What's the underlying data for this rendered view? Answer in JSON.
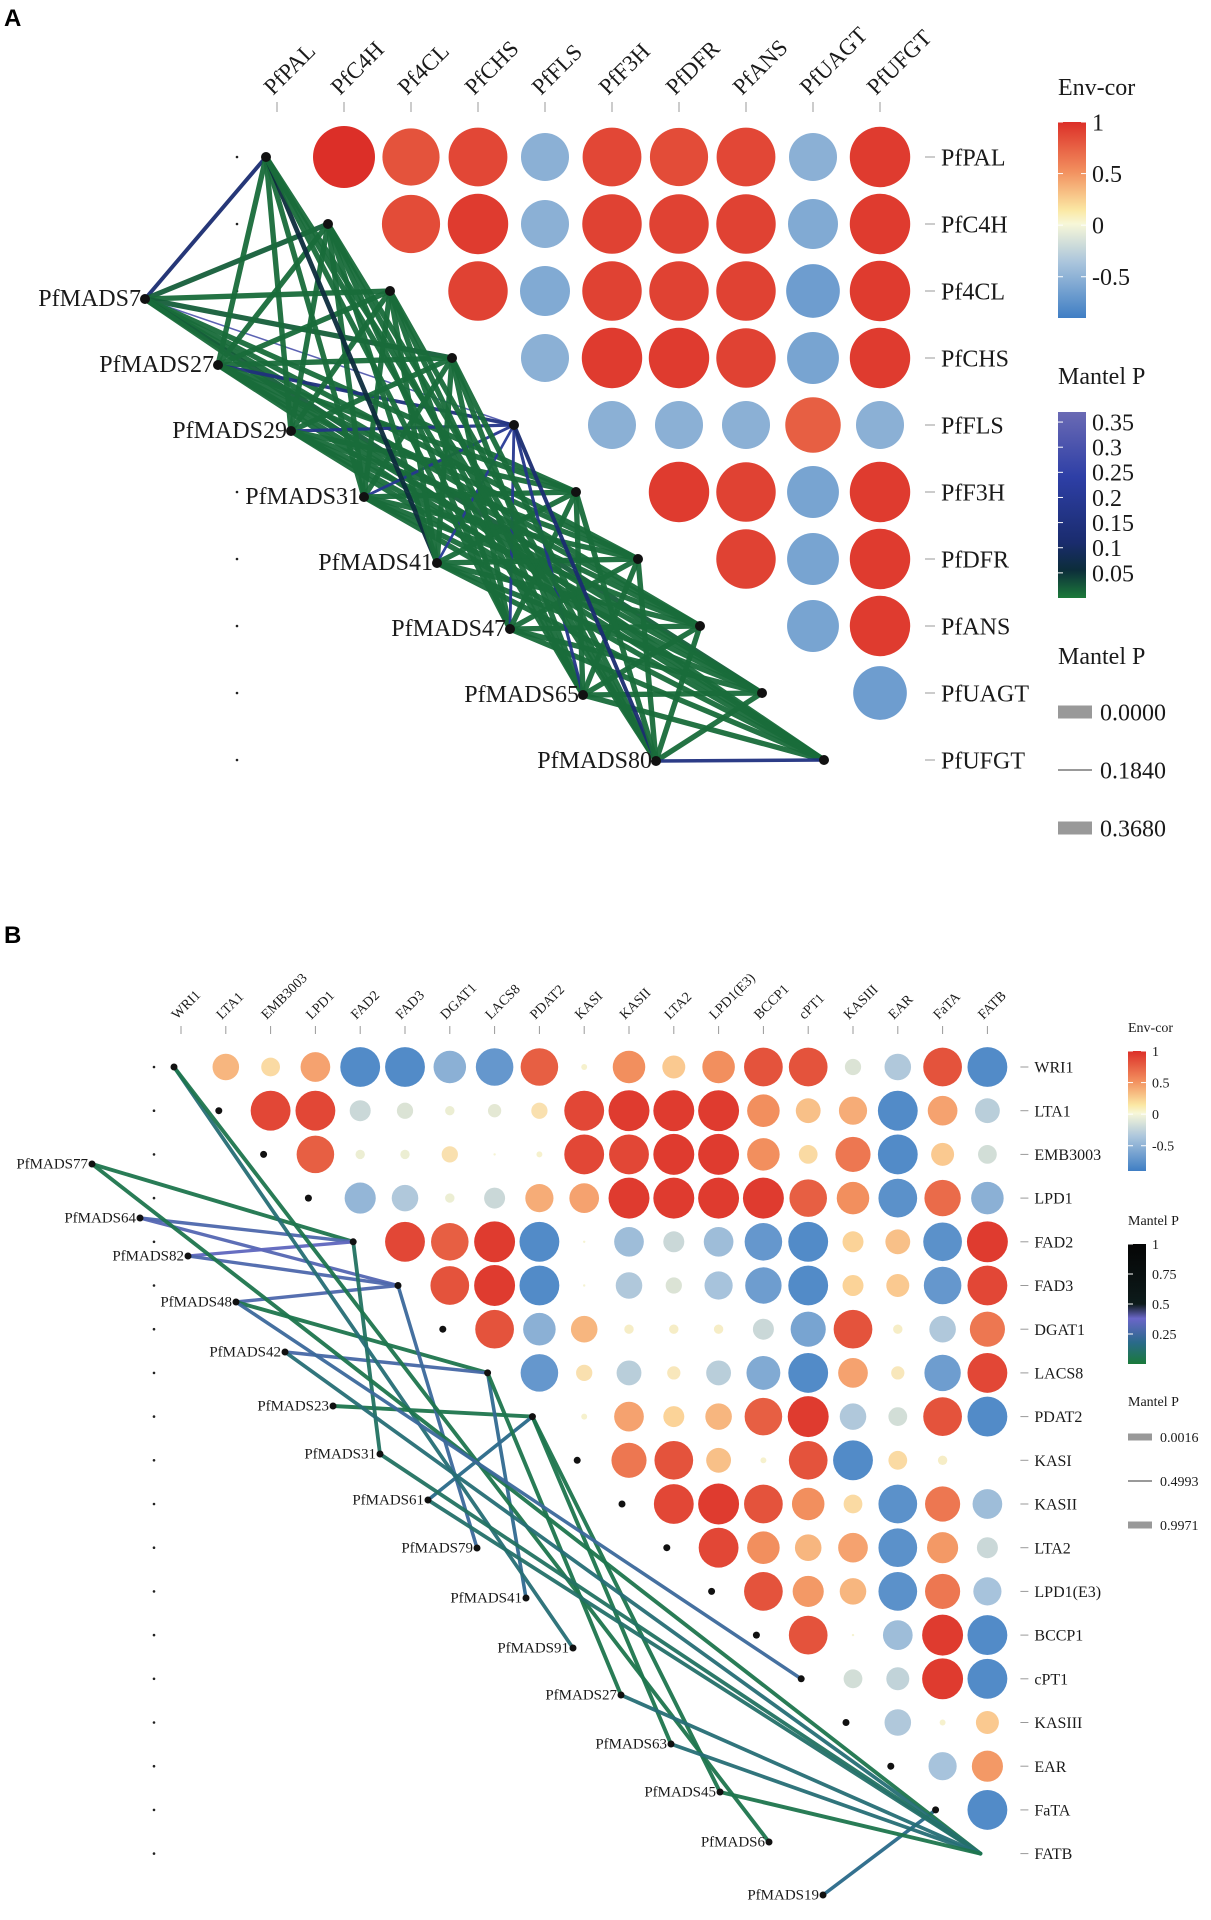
{
  "chart_data": [
    {
      "type": "heatmap",
      "panel": "A",
      "variables": [
        "PfPAL",
        "PfC4H",
        "Pf4CL",
        "PfCHS",
        "PfFLS",
        "PfF3H",
        "PfDFR",
        "PfANS",
        "PfUAGT",
        "PfUFGT"
      ],
      "correlation_upper": [
        [
          1,
          0.85,
          0.9,
          -0.6,
          0.9,
          0.88,
          0.9,
          -0.6,
          0.95
        ],
        [
          0.88,
          0.95,
          -0.6,
          0.92,
          0.92,
          0.92,
          -0.65,
          0.95
        ],
        [
          0.92,
          -0.65,
          0.92,
          0.92,
          0.92,
          -0.75,
          0.95
        ],
        [
          -0.6,
          0.95,
          0.95,
          0.92,
          -0.7,
          0.95
        ],
        [
          -0.6,
          -0.6,
          -0.6,
          0.8,
          -0.6
        ],
        [
          0.95,
          0.92,
          -0.7,
          0.95
        ],
        [
          0.92,
          -0.7,
          0.95
        ],
        [
          -0.7,
          0.95
        ],
        [
          -0.75
        ]
      ],
      "regulators": [
        "PfMADS7",
        "PfMADS27",
        "PfMADS29",
        "PfMADS31",
        "PfMADS41",
        "PfMADS47",
        "PfMADS65",
        "PfMADS80"
      ],
      "mantel_links": [
        {
          "from": "PfMADS7",
          "to": "PfPAL",
          "p": 0.12
        },
        {
          "from": "PfMADS7",
          "to": "PfC4H",
          "p": 0.02
        },
        {
          "from": "PfMADS7",
          "to": "Pf4CL",
          "p": 0.01
        },
        {
          "from": "PfMADS7",
          "to": "PfCHS",
          "p": 0.02
        },
        {
          "from": "PfMADS7",
          "to": "PfFLS",
          "p": 0.33
        },
        {
          "from": "PfMADS7",
          "to": "PfF3H",
          "p": 0.01
        },
        {
          "from": "PfMADS7",
          "to": "PfDFR",
          "p": 0.01
        },
        {
          "from": "PfMADS7",
          "to": "PfANS",
          "p": 0.01
        },
        {
          "from": "PfMADS7",
          "to": "PfUAGT",
          "p": 0.02
        },
        {
          "from": "PfMADS7",
          "to": "PfUFGT",
          "p": 0.01
        },
        {
          "from": "PfMADS27",
          "to": "PfPAL",
          "p": 0.01
        },
        {
          "from": "PfMADS27",
          "to": "PfC4H",
          "p": 0.01
        },
        {
          "from": "PfMADS27",
          "to": "Pf4CL",
          "p": 0.01
        },
        {
          "from": "PfMADS27",
          "to": "PfCHS",
          "p": 0.01
        },
        {
          "from": "PfMADS27",
          "to": "PfFLS",
          "p": 0.15
        },
        {
          "from": "PfMADS27",
          "to": "PfF3H",
          "p": 0.01
        },
        {
          "from": "PfMADS27",
          "to": "PfDFR",
          "p": 0.01
        },
        {
          "from": "PfMADS27",
          "to": "PfANS",
          "p": 0.01
        },
        {
          "from": "PfMADS27",
          "to": "PfUAGT",
          "p": 0.01
        },
        {
          "from": "PfMADS27",
          "to": "PfUFGT",
          "p": 0.01
        },
        {
          "from": "PfMADS29",
          "to": "PfPAL",
          "p": 0.01
        },
        {
          "from": "PfMADS29",
          "to": "PfC4H",
          "p": 0.01
        },
        {
          "from": "PfMADS29",
          "to": "Pf4CL",
          "p": 0.01
        },
        {
          "from": "PfMADS29",
          "to": "PfCHS",
          "p": 0.01
        },
        {
          "from": "PfMADS29",
          "to": "PfFLS",
          "p": 0.18
        },
        {
          "from": "PfMADS29",
          "to": "PfF3H",
          "p": 0.01
        },
        {
          "from": "PfMADS29",
          "to": "PfDFR",
          "p": 0.01
        },
        {
          "from": "PfMADS29",
          "to": "PfANS",
          "p": 0.01
        },
        {
          "from": "PfMADS29",
          "to": "PfUAGT",
          "p": 0.01
        },
        {
          "from": "PfMADS29",
          "to": "PfUFGT",
          "p": 0.01
        },
        {
          "from": "PfMADS31",
          "to": "PfPAL",
          "p": 0.01
        },
        {
          "from": "PfMADS31",
          "to": "PfC4H",
          "p": 0.01
        },
        {
          "from": "PfMADS31",
          "to": "Pf4CL",
          "p": 0.01
        },
        {
          "from": "PfMADS31",
          "to": "PfCHS",
          "p": 0.01
        },
        {
          "from": "PfMADS31",
          "to": "PfFLS",
          "p": 0.2
        },
        {
          "from": "PfMADS31",
          "to": "PfF3H",
          "p": 0.01
        },
        {
          "from": "PfMADS31",
          "to": "PfDFR",
          "p": 0.01
        },
        {
          "from": "PfMADS31",
          "to": "PfANS",
          "p": 0.01
        },
        {
          "from": "PfMADS31",
          "to": "PfUAGT",
          "p": 0.01
        },
        {
          "from": "PfMADS31",
          "to": "PfUFGT",
          "p": 0.01
        },
        {
          "from": "PfMADS41",
          "to": "PfPAL",
          "p": 0.06
        },
        {
          "from": "PfMADS41",
          "to": "PfC4H",
          "p": 0.01
        },
        {
          "from": "PfMADS41",
          "to": "Pf4CL",
          "p": 0.01
        },
        {
          "from": "PfMADS41",
          "to": "PfCHS",
          "p": 0.01
        },
        {
          "from": "PfMADS41",
          "to": "PfFLS",
          "p": 0.22
        },
        {
          "from": "PfMADS41",
          "to": "PfF3H",
          "p": 0.01
        },
        {
          "from": "PfMADS41",
          "to": "PfDFR",
          "p": 0.01
        },
        {
          "from": "PfMADS41",
          "to": "PfANS",
          "p": 0.01
        },
        {
          "from": "PfMADS41",
          "to": "PfUAGT",
          "p": 0.01
        },
        {
          "from": "PfMADS41",
          "to": "PfUFGT",
          "p": 0.01
        },
        {
          "from": "PfMADS47",
          "to": "PfPAL",
          "p": 0.01
        },
        {
          "from": "PfMADS47",
          "to": "PfC4H",
          "p": 0.01
        },
        {
          "from": "PfMADS47",
          "to": "Pf4CL",
          "p": 0.01
        },
        {
          "from": "PfMADS47",
          "to": "PfCHS",
          "p": 0.01
        },
        {
          "from": "PfMADS47",
          "to": "PfFLS",
          "p": 0.2
        },
        {
          "from": "PfMADS47",
          "to": "PfF3H",
          "p": 0.01
        },
        {
          "from": "PfMADS47",
          "to": "PfDFR",
          "p": 0.01
        },
        {
          "from": "PfMADS47",
          "to": "PfANS",
          "p": 0.01
        },
        {
          "from": "PfMADS47",
          "to": "PfUAGT",
          "p": 0.01
        },
        {
          "from": "PfMADS47",
          "to": "PfUFGT",
          "p": 0.01
        },
        {
          "from": "PfMADS65",
          "to": "PfPAL",
          "p": 0.01
        },
        {
          "from": "PfMADS65",
          "to": "PfC4H",
          "p": 0.01
        },
        {
          "from": "PfMADS65",
          "to": "Pf4CL",
          "p": 0.01
        },
        {
          "from": "PfMADS65",
          "to": "PfCHS",
          "p": 0.01
        },
        {
          "from": "PfMADS65",
          "to": "PfFLS",
          "p": 0.18
        },
        {
          "from": "PfMADS65",
          "to": "PfF3H",
          "p": 0.01
        },
        {
          "from": "PfMADS65",
          "to": "PfDFR",
          "p": 0.01
        },
        {
          "from": "PfMADS65",
          "to": "PfANS",
          "p": 0.01
        },
        {
          "from": "PfMADS65",
          "to": "PfUAGT",
          "p": 0.01
        },
        {
          "from": "PfMADS65",
          "to": "PfUFGT",
          "p": 0.01
        },
        {
          "from": "PfMADS80",
          "to": "PfPAL",
          "p": 0.01
        },
        {
          "from": "PfMADS80",
          "to": "PfC4H",
          "p": 0.01
        },
        {
          "from": "PfMADS80",
          "to": "Pf4CL",
          "p": 0.01
        },
        {
          "from": "PfMADS80",
          "to": "PfCHS",
          "p": 0.01
        },
        {
          "from": "PfMADS80",
          "to": "PfFLS",
          "p": 0.12
        },
        {
          "from": "PfMADS80",
          "to": "PfF3H",
          "p": 0.01
        },
        {
          "from": "PfMADS80",
          "to": "PfDFR",
          "p": 0.01
        },
        {
          "from": "PfMADS80",
          "to": "PfANS",
          "p": 0.01
        },
        {
          "from": "PfMADS80",
          "to": "PfUAGT",
          "p": 0.01
        },
        {
          "from": "PfMADS80",
          "to": "PfUFGT",
          "p": 0.16
        }
      ],
      "legend": {
        "env_title": "Env-cor",
        "env_ticks": [
          "1",
          "0.5",
          "0",
          "-0.5"
        ],
        "env_tick_values": [
          1,
          0.5,
          0,
          -0.5
        ],
        "env_range": [
          -0.9,
          1
        ],
        "pcolor_title": "Mantel P",
        "pcolor_ticks": [
          "0.35",
          "0.3",
          "0.25",
          "0.2",
          "0.15",
          "0.1",
          "0.05"
        ],
        "pcolor_tick_values": [
          0.35,
          0.3,
          0.25,
          0.2,
          0.15,
          0.1,
          0.05
        ],
        "pcolor_range": [
          0,
          0.37
        ],
        "psize_title": "Mantel P",
        "psize_labels": [
          "0.0000",
          "0.1840",
          "0.3680"
        ]
      }
    },
    {
      "type": "heatmap",
      "panel": "B",
      "variables": [
        "WRI1",
        "LTA1",
        "EMB3003",
        "LPD1",
        "FAD2",
        "FAD3",
        "DGAT1",
        "LACS8",
        "PDAT2",
        "KASI",
        "KASII",
        "LTA2",
        "LPD1(E3)",
        "BCCP1",
        "cPT1",
        "KASIII",
        "EAR",
        "FaTA",
        "FATB"
      ],
      "correlation_upper": [
        [
          0.4,
          0.2,
          0.5,
          -0.9,
          -0.9,
          -0.6,
          -0.8,
          0.8,
          0.02,
          0.6,
          0.3,
          0.6,
          0.85,
          0.85,
          -0.15,
          -0.4,
          0.85,
          -0.9
        ],
        [
          0.9,
          0.9,
          -0.25,
          -0.15,
          -0.05,
          -0.1,
          0.15,
          0.9,
          0.95,
          0.95,
          0.95,
          0.6,
          0.35,
          0.45,
          -0.9,
          0.5,
          -0.35
        ],
        [
          0.8,
          -0.05,
          -0.05,
          0.15,
          0,
          0.02,
          0.9,
          0.9,
          0.95,
          0.95,
          0.6,
          0.2,
          0.7,
          -0.9,
          0.3,
          -0.2
        ],
        [
          -0.55,
          -0.4,
          -0.05,
          -0.25,
          0.45,
          0.5,
          0.95,
          0.95,
          0.95,
          0.95,
          0.8,
          0.6,
          -0.85,
          0.75,
          -0.6
        ],
        [
          0.9,
          0.8,
          0.95,
          -0.9,
          0,
          -0.5,
          -0.25,
          -0.5,
          -0.8,
          -0.9,
          0.25,
          0.35,
          -0.85,
          0.95
        ],
        [
          0.85,
          0.95,
          -0.9,
          0,
          -0.4,
          -0.15,
          -0.45,
          -0.75,
          -0.9,
          0.25,
          0.3,
          -0.8,
          0.9
        ],
        [
          0.85,
          -0.6,
          0.4,
          0.05,
          0.05,
          0.05,
          -0.25,
          -0.7,
          0.85,
          0.05,
          -0.4,
          0.7
        ],
        [
          -0.8,
          0.15,
          -0.35,
          0.1,
          -0.35,
          -0.65,
          -0.9,
          0.5,
          0.1,
          -0.75,
          0.9
        ],
        [
          0.02,
          0.5,
          0.25,
          0.4,
          0.8,
          0.95,
          -0.4,
          -0.2,
          0.85,
          -0.9
        ],
        [
          0.7,
          0.85,
          0.35,
          0.02,
          0.85,
          -0.9,
          0.2,
          0.05
        ],
        [
          0.9,
          0.95,
          0.85,
          0.6,
          0.2,
          -0.85,
          0.7,
          -0.5
        ],
        [
          0.9,
          0.6,
          0.4,
          0.5,
          -0.85,
          0.55,
          -0.25
        ],
        [
          0.85,
          0.55,
          0.4,
          -0.85,
          0.7,
          -0.45
        ],
        [
          0.85,
          0,
          -0.5,
          0.95,
          -0.9
        ],
        [
          -0.2,
          -0.3,
          0.95,
          -0.9
        ],
        [
          -0.4,
          0.02,
          0.3
        ],
        [
          -0.45,
          0.55
        ],
        [
          -0.9
        ]
      ],
      "regulators": [
        "PfMADS77",
        "PfMADS64",
        "PfMADS82",
        "PfMADS48",
        "PfMADS42",
        "PfMADS23",
        "PfMADS31",
        "PfMADS61",
        "PfMADS79",
        "PfMADS41",
        "PfMADS91",
        "PfMADS27",
        "PfMADS63",
        "PfMADS45",
        "PfMADS6",
        "PfMADS19"
      ],
      "mantel_links": [
        {
          "from": "PfMADS77",
          "to": "FAD2",
          "p": 0.05
        },
        {
          "from": "PfMADS64",
          "to": "FAD2",
          "p": 0.3
        },
        {
          "from": "PfMADS64",
          "to": "FAD3",
          "p": 0.32
        },
        {
          "from": "PfMADS82",
          "to": "FAD2",
          "p": 0.35
        },
        {
          "from": "PfMADS82",
          "to": "FAD3",
          "p": 0.3
        },
        {
          "from": "PfMADS48",
          "to": "FAD3",
          "p": 0.3
        },
        {
          "from": "PfMADS48",
          "to": "LACS8",
          "p": 0.05
        },
        {
          "from": "PfMADS42",
          "to": "LACS8",
          "p": 0.28
        },
        {
          "from": "PfMADS23",
          "to": "PDAT2",
          "p": 0.05
        },
        {
          "from": "PfMADS31",
          "to": "FAD2",
          "p": 0.1
        },
        {
          "from": "PfMADS61",
          "to": "PDAT2",
          "p": 0.2
        },
        {
          "from": "PfMADS79",
          "to": "FAD3",
          "p": 0.25
        },
        {
          "from": "PfMADS41",
          "to": "LACS8",
          "p": 0.22
        },
        {
          "from": "PfMADS91",
          "to": "WRI1",
          "p": 0.15
        },
        {
          "from": "PfMADS27",
          "to": "LACS8",
          "p": 0.05
        },
        {
          "from": "PfMADS63",
          "to": "PDAT2",
          "p": 0.05
        },
        {
          "from": "PfMADS45",
          "to": "PDAT2",
          "p": 0.05
        },
        {
          "from": "PfMADS6",
          "to": "WRI1",
          "p": 0.05
        },
        {
          "from": "PfMADS19",
          "to": "FaTA",
          "p": 0.2
        },
        {
          "from": "PfMADS77",
          "to": "FATB",
          "p": 0.05
        },
        {
          "from": "PfMADS48",
          "to": "cPT1",
          "p": 0.25
        },
        {
          "from": "PfMADS42",
          "to": "FATB",
          "p": 0.15
        },
        {
          "from": "PfMADS31",
          "to": "FATB",
          "p": 0.1
        },
        {
          "from": "PfMADS61",
          "to": "FATB",
          "p": 0.12
        },
        {
          "from": "PfMADS27",
          "to": "FATB",
          "p": 0.15
        },
        {
          "from": "PfMADS63",
          "to": "FATB",
          "p": 0.15
        },
        {
          "from": "PfMADS45",
          "to": "FATB",
          "p": 0.05
        }
      ],
      "legend": {
        "env_title": "Env-cor",
        "env_ticks": [
          "1",
          "0.5",
          "0",
          "-0.5"
        ],
        "env_tick_values": [
          1,
          0.5,
          0,
          -0.5
        ],
        "env_range": [
          -0.9,
          1
        ],
        "pcolor_title": "Mantel P",
        "pcolor_ticks": [
          "1",
          "0.75",
          "0.5",
          "0.25"
        ],
        "pcolor_tick_values": [
          1,
          0.75,
          0.5,
          0.25
        ],
        "pcolor_range": [
          0,
          1
        ],
        "psize_title": "Mantel P",
        "psize_labels": [
          "0.0016",
          "0.4993",
          "0.9971"
        ]
      }
    }
  ],
  "panel_labels": {
    "a": "A",
    "b": "B"
  }
}
